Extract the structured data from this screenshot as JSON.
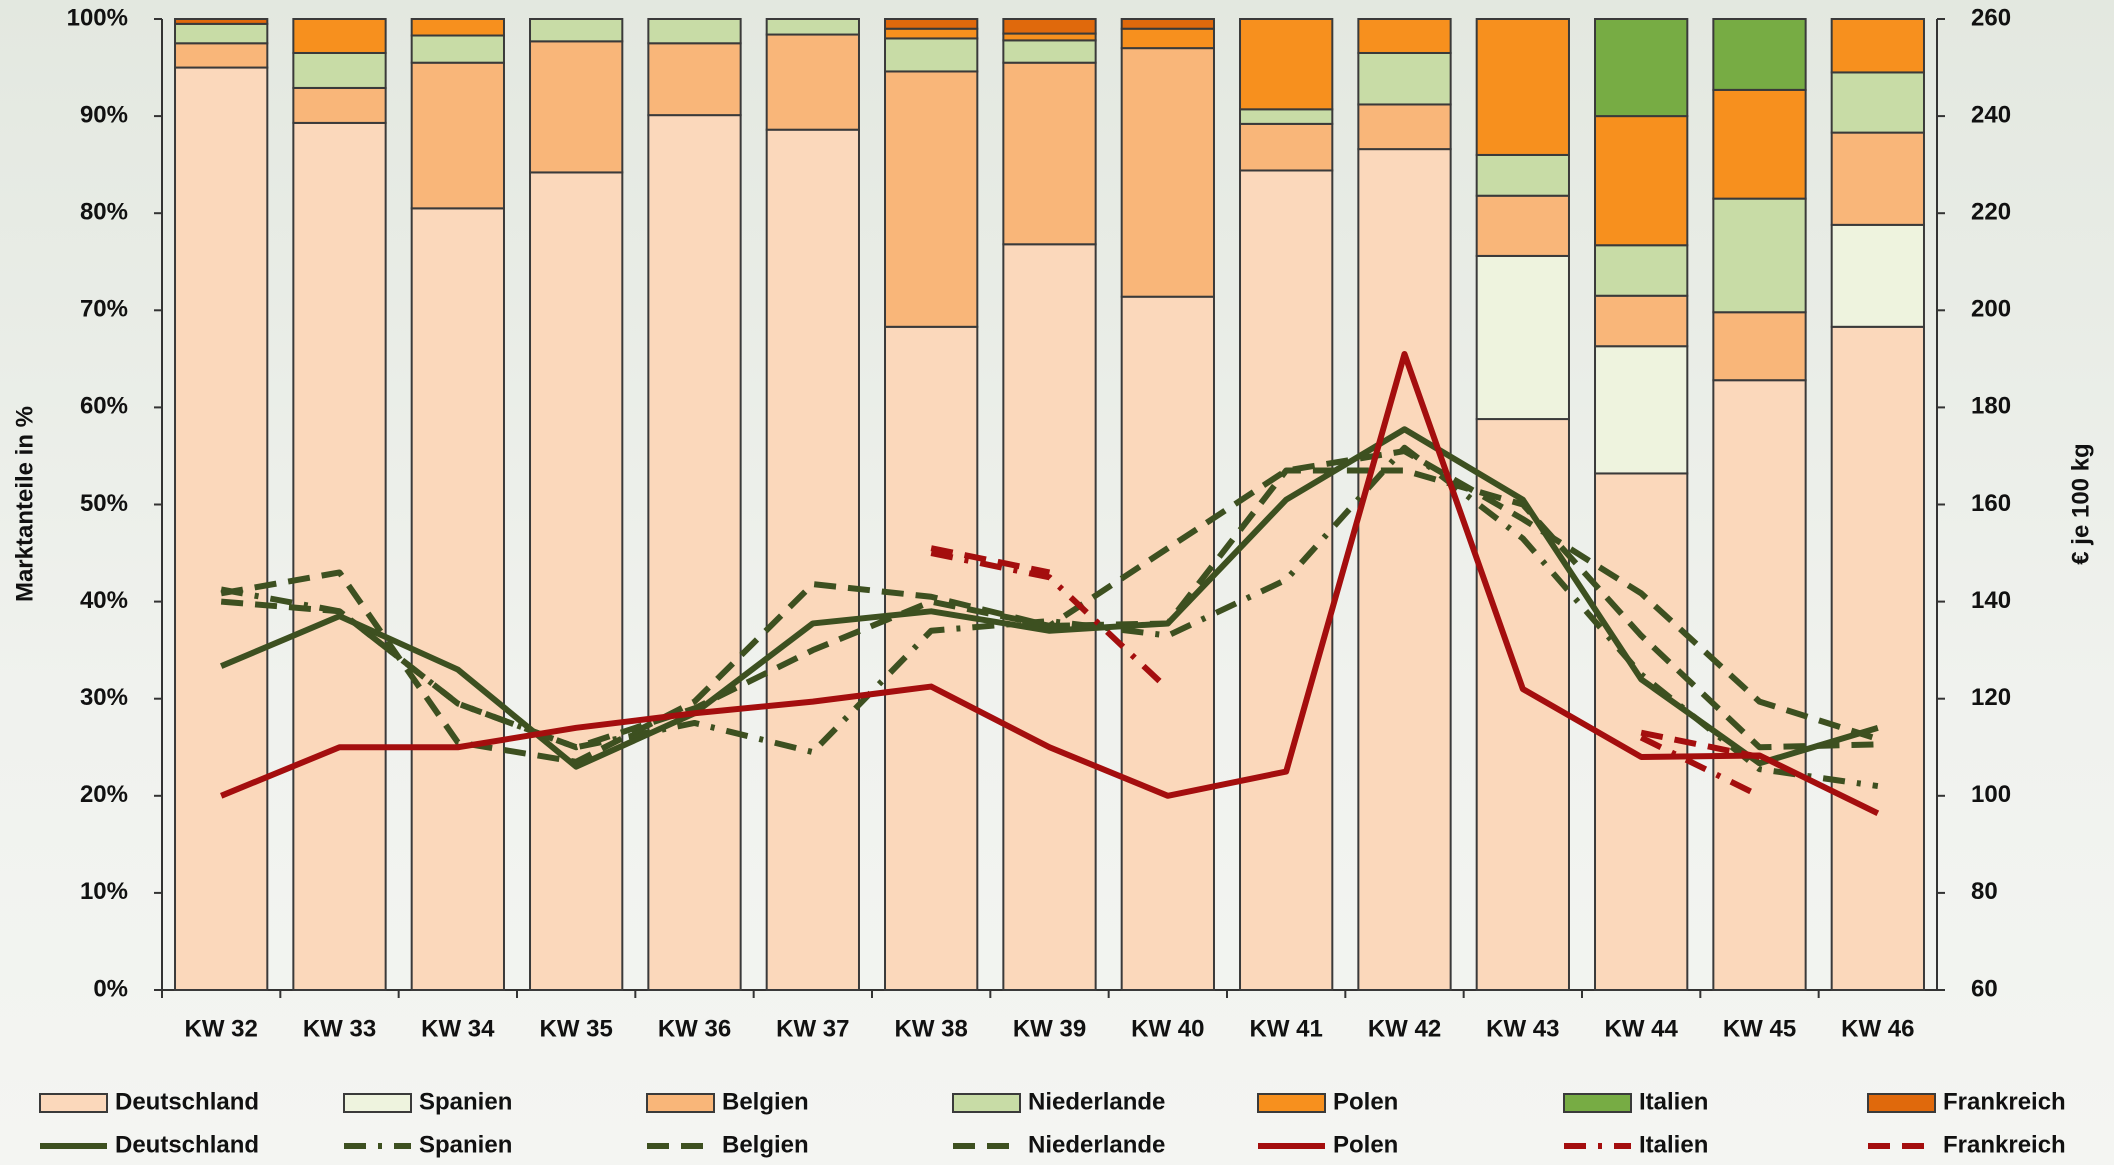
{
  "chart_data": {
    "type": "combo",
    "categories": [
      "KW 32",
      "KW 33",
      "KW 34",
      "KW 35",
      "KW 36",
      "KW 37",
      "KW 38",
      "KW 39",
      "KW 40",
      "KW 41",
      "KW 42",
      "KW 43",
      "KW 44",
      "KW 45",
      "KW 46"
    ],
    "y_label": "Marktanteile in %",
    "y2_label": "€ je 100 kg",
    "ylim": [
      0,
      100
    ],
    "yticks": [
      {
        "value": 0,
        "label": "0%"
      },
      {
        "value": 10,
        "label": "10%"
      },
      {
        "value": 20,
        "label": "20%"
      },
      {
        "value": 30,
        "label": "30%"
      },
      {
        "value": 40,
        "label": "40%"
      },
      {
        "value": 50,
        "label": "50%"
      },
      {
        "value": 60,
        "label": "60%"
      },
      {
        "value": 70,
        "label": "70%"
      },
      {
        "value": 80,
        "label": "80%"
      },
      {
        "value": 90,
        "label": "90%"
      },
      {
        "value": 100,
        "label": "100%"
      }
    ],
    "y2lim": [
      60,
      260
    ],
    "y2ticks": [
      60,
      80,
      100,
      120,
      140,
      160,
      180,
      200,
      220,
      240,
      260
    ],
    "stacked": true,
    "series": [
      {
        "name": "Deutschland",
        "type": "bar",
        "color": "#fbd8bb",
        "values": [
          95,
          89.3,
          80.5,
          84.2,
          90.1,
          88.6,
          68.3,
          76.8,
          71.4,
          84.4,
          86.6,
          58.8,
          53.2,
          62.8,
          68.3
        ]
      },
      {
        "name": "Spanien",
        "type": "bar",
        "color": "#eef3de",
        "values": [
          0,
          0,
          0,
          0,
          0,
          0,
          0,
          0,
          0,
          0,
          0,
          16.8,
          13.1,
          0,
          10.5
        ]
      },
      {
        "name": "Belgien",
        "type": "bar",
        "color": "#f9b679",
        "values": [
          2.5,
          3.6,
          15,
          13.5,
          7.4,
          9.8,
          26.3,
          18.7,
          25.6,
          4.8,
          4.6,
          6.2,
          5.2,
          7,
          9.5
        ]
      },
      {
        "name": "Niederlande",
        "type": "bar",
        "color": "#c8dca6",
        "values": [
          2,
          3.6,
          2.8,
          2.3,
          2.5,
          1.6,
          3.4,
          2.3,
          0,
          1.5,
          5.3,
          4.2,
          5.2,
          11.7,
          6.2
        ]
      },
      {
        "name": "Polen",
        "type": "bar",
        "color": "#f7901e",
        "values": [
          0,
          3.5,
          1.7,
          0,
          0,
          0,
          1,
          0.7,
          2,
          9.3,
          3.5,
          14,
          13.3,
          11.2,
          5.5
        ]
      },
      {
        "name": "Italien",
        "type": "bar",
        "color": "#77ac44",
        "values": [
          0,
          0,
          0,
          0,
          0,
          0,
          0,
          0,
          0,
          0,
          0,
          0,
          10,
          7.3,
          0
        ]
      },
      {
        "name": "Frankreich",
        "type": "bar",
        "color": "#e0690c",
        "values": [
          0.5,
          0,
          0,
          0,
          0,
          0,
          1,
          1.5,
          1,
          0,
          0,
          0,
          0,
          0,
          0
        ]
      },
      {
        "name": "Deutschland",
        "type": "line",
        "axis": "y2",
        "color": "#3d5020",
        "dash": "solid",
        "values": [
          126.7,
          137,
          126,
          106,
          117,
          135.5,
          138,
          134,
          135.5,
          161,
          175.5,
          161,
          124,
          106.7,
          114
        ]
      },
      {
        "name": "Spanien",
        "type": "line",
        "axis": "y2",
        "color": "#3d5020",
        "dash": "dashdot",
        "values": [
          142.5,
          138,
          119,
          110,
          115,
          109,
          134,
          136,
          133,
          144.5,
          171.7,
          153,
          125,
          105.5,
          102
        ]
      },
      {
        "name": "Belgien",
        "type": "line",
        "axis": "y2",
        "color": "#3d5020",
        "dash": "dashed",
        "values": [
          141.7,
          146,
          111,
          107,
          119.4,
          143.6,
          141,
          135,
          135.5,
          167,
          167,
          160,
          133,
          110,
          110.6
        ]
      },
      {
        "name": "Niederlande",
        "type": "line",
        "axis": "y2",
        "color": "#3d5020",
        "dash": "dashed",
        "values": [
          140,
          138,
          119,
          110,
          118,
          130,
          140,
          135,
          151,
          167,
          171,
          157,
          141.7,
          119.4,
          111.7
        ]
      },
      {
        "name": "Polen",
        "type": "line",
        "axis": "y2",
        "color": "#a40e0e",
        "dash": "solid",
        "values": [
          100,
          110,
          110,
          114,
          117,
          119.4,
          122.5,
          110,
          100,
          105,
          191,
          122,
          108,
          108.3,
          96.4
        ]
      },
      {
        "name": "Italien",
        "type": "line",
        "axis": "y2",
        "color": "#a40e0e",
        "dash": "dashdot",
        "values": [
          null,
          null,
          null,
          null,
          null,
          null,
          150,
          145,
          122,
          null,
          null,
          null,
          112,
          100,
          null
        ]
      },
      {
        "name": "Frankreich",
        "type": "line",
        "axis": "y2",
        "color": "#a40e0e",
        "dash": "dashed",
        "values": [
          null,
          null,
          null,
          null,
          null,
          null,
          151,
          146,
          null,
          null,
          null,
          null,
          113,
          108,
          null
        ]
      }
    ]
  }
}
